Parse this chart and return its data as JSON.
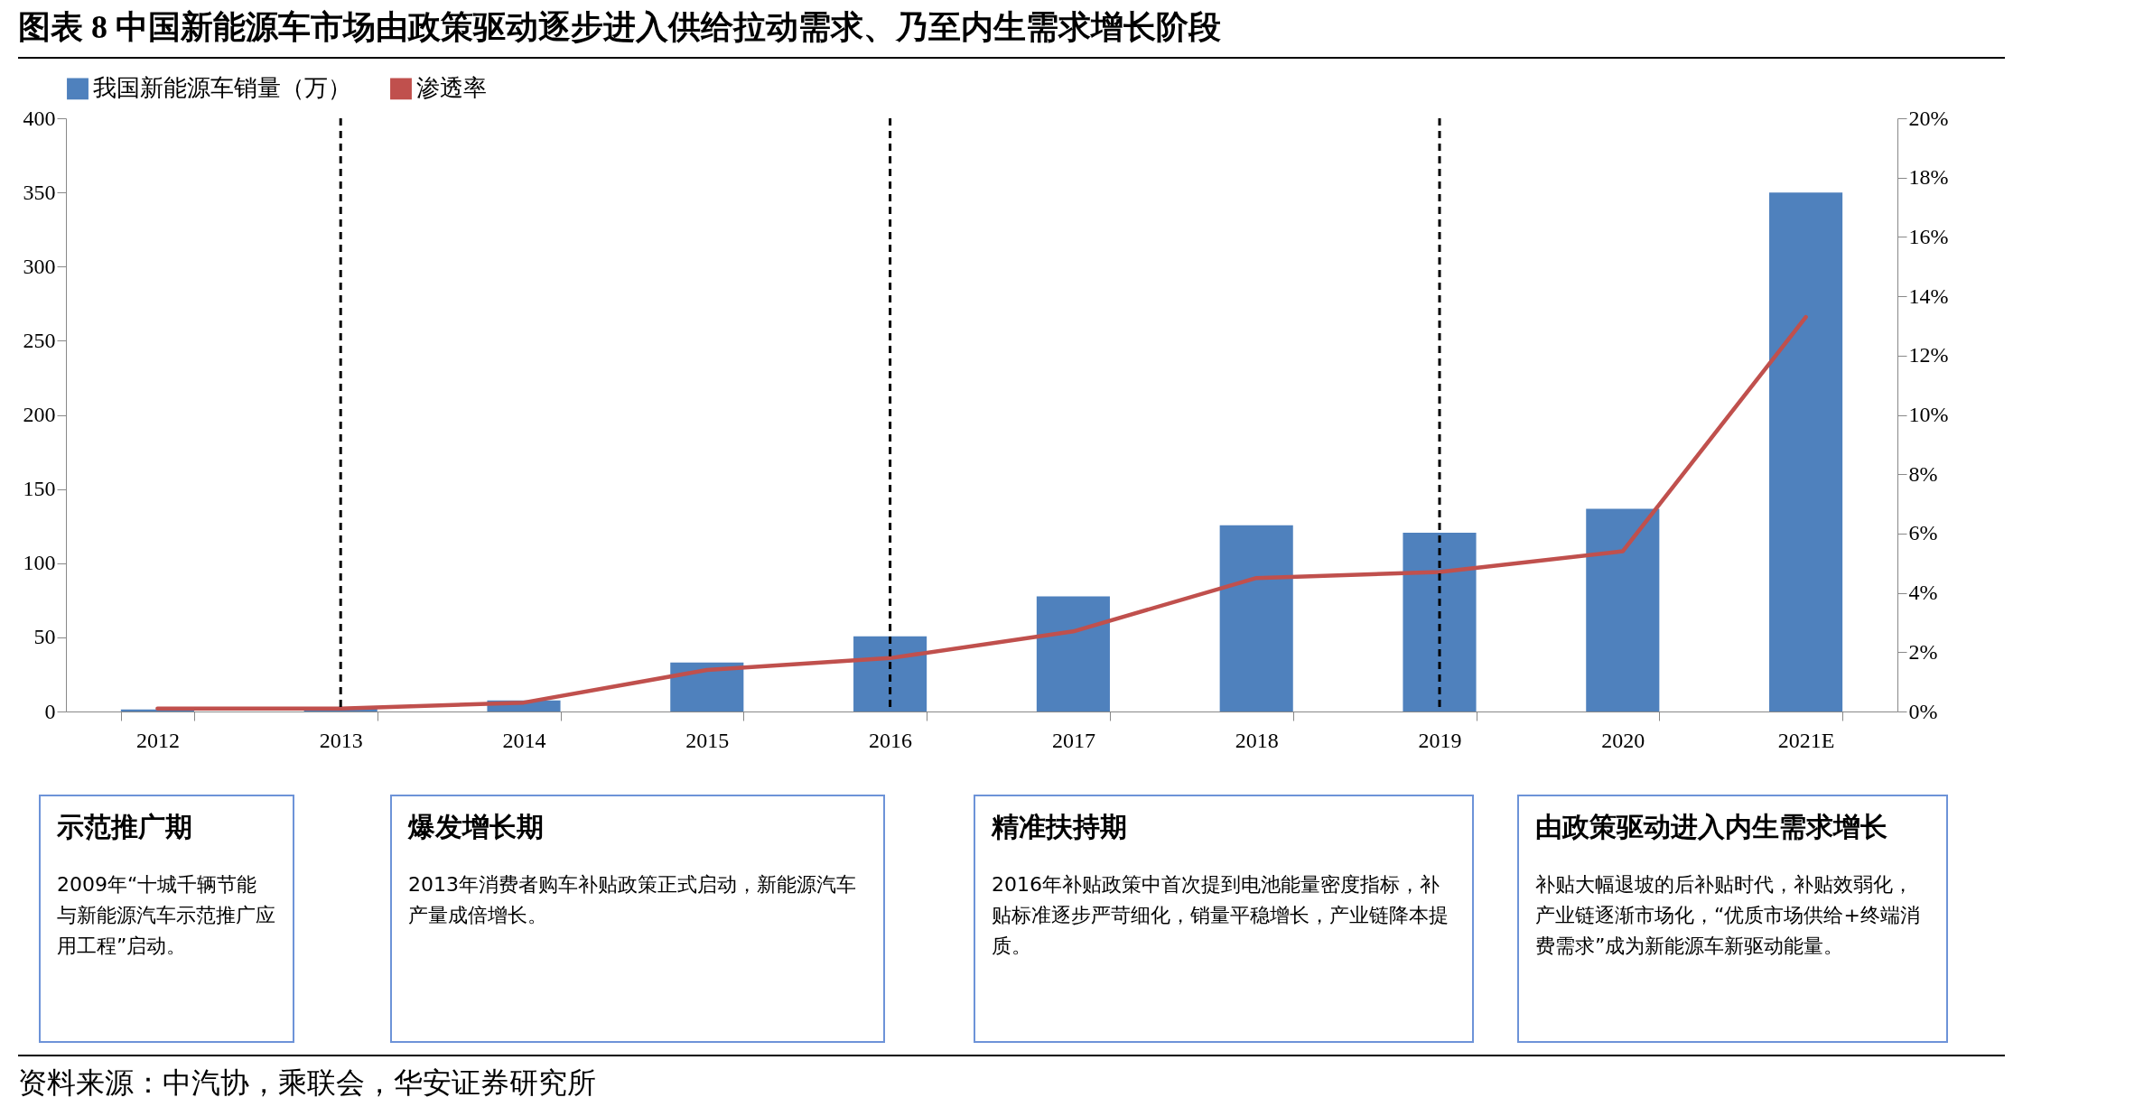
{
  "chart_data": {
    "type": "bar",
    "title": "图表 8 中国新能源车市场由政策驱动逐步进入供给拉动需求、乃至内生需求增长阶段",
    "categories": [
      "2012",
      "2013",
      "2014",
      "2015",
      "2016",
      "2017",
      "2018",
      "2019",
      "2020",
      "2021E"
    ],
    "series": [
      {
        "name": "我国新能源车销量（万）",
        "color": "#4f81bd",
        "values": [
          1.3,
          1.8,
          7.5,
          33,
          50.7,
          77.7,
          125.6,
          120.6,
          136.7,
          350
        ]
      },
      {
        "name": "渗透率",
        "type": "line",
        "axis": "y2",
        "color": "#c0504d",
        "values": [
          0.1,
          0.1,
          0.3,
          1.4,
          1.8,
          2.7,
          4.5,
          4.7,
          5.4,
          13.3
        ]
      }
    ],
    "ylim": [
      0,
      400
    ],
    "yticks": [
      0,
      50,
      100,
      150,
      200,
      250,
      300,
      350,
      400
    ],
    "y2lim": [
      0,
      20
    ],
    "y2ticks": [
      {
        "value": 0,
        "label": "0%"
      },
      {
        "value": 2,
        "label": "2%"
      },
      {
        "value": 4,
        "label": "4%"
      },
      {
        "value": 6,
        "label": "6%"
      },
      {
        "value": 8,
        "label": "8%"
      },
      {
        "value": 10,
        "label": "10%"
      },
      {
        "value": 12,
        "label": "12%"
      },
      {
        "value": 14,
        "label": "14%"
      },
      {
        "value": 16,
        "label": "16%"
      },
      {
        "value": 18,
        "label": "18%"
      },
      {
        "value": 20,
        "label": "20%"
      }
    ],
    "ref_lines": [
      {
        "axis": "x",
        "value": "2013",
        "line_style": "dashed",
        "color": "#000000"
      },
      {
        "axis": "x",
        "value": "2016",
        "line_style": "dashed",
        "color": "#000000"
      },
      {
        "axis": "x",
        "value": "2019",
        "line_style": "dashed",
        "color": "#000000"
      }
    ],
    "legend": "top",
    "annotations": [
      "示范推广期",
      "2009年“十城千辆节能与新能源汽车示范推广应用工程”启动。",
      "爆发增长期",
      "2013年消费者购车补贴政策正式启动，新能源汽车产量成倍增长。",
      "精准扶持期",
      "2016年补贴政策中首次提到电池能量密度指标，补贴标准逐步严苛细化，销量平稳增长，产业链降本提质。",
      "由政策驱动进入内生需求增长",
      "补贴大幅退坡的后补贴时代，补贴效弱化，产业链逐渐市场化，“优质市场供给+终端消费需求”成为新能源车新驱动能量。",
      "资料来源：中汽协，乘联会，华安证券研究所"
    ]
  }
}
